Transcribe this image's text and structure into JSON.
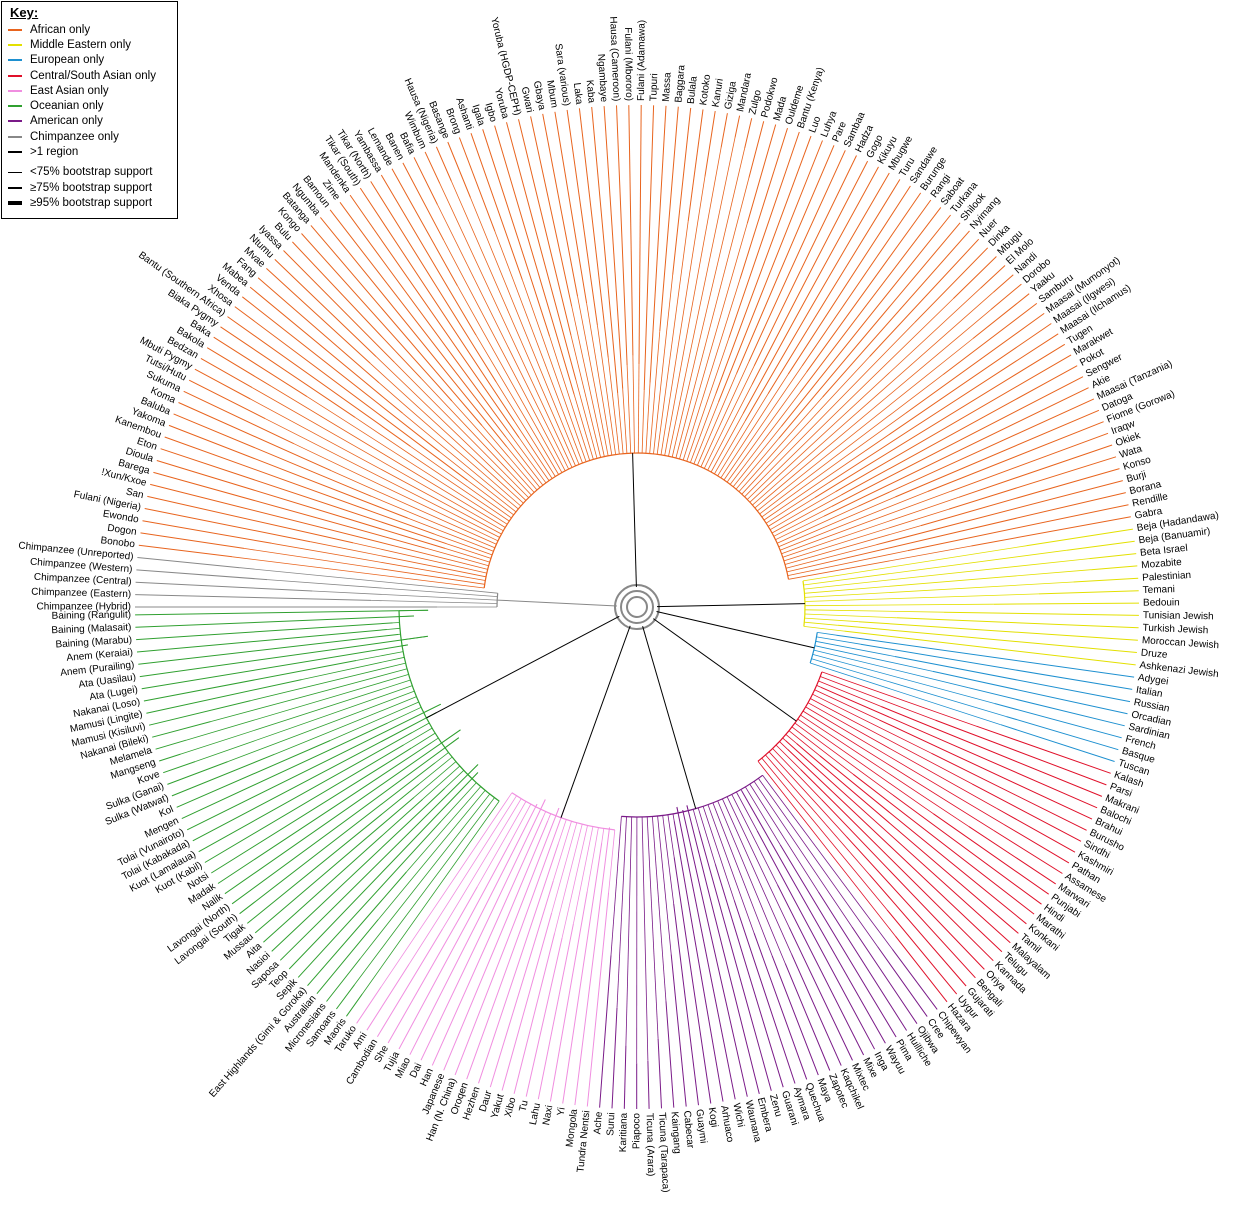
{
  "legend": {
    "title": "Key:",
    "regions": [
      {
        "label": "African only",
        "color": "#e8641e"
      },
      {
        "label": "Middle Eastern only",
        "color": "#e3e000"
      },
      {
        "label": "European only",
        "color": "#1e90d0"
      },
      {
        "label": "Central/South Asian only",
        "color": "#e0102a"
      },
      {
        "label": "East Asian only",
        "color": "#f08ee0"
      },
      {
        "label": "Oceanian only",
        "color": "#30a030"
      },
      {
        "label": "American only",
        "color": "#7a1a88"
      },
      {
        "label": "Chimpanzee only",
        "color": "#888888"
      },
      {
        "label": ">1 region",
        "color": "#000000"
      }
    ],
    "support": [
      {
        "label": "<75% bootstrap support",
        "weight": "thin"
      },
      {
        "label": "≥75% bootstrap support",
        "weight": "medium"
      },
      {
        "label": "≥95% bootstrap support",
        "weight": "thick"
      }
    ]
  },
  "groups": [
    {
      "region": "Chimpanzee",
      "color": "#888888",
      "labels": [
        "Chimpanzee (Hybrid)",
        "Chimpanzee (Eastern)",
        "Chimpanzee (Central)",
        "Chimpanzee (Western)",
        "Chimpanzee (Unreported)"
      ]
    },
    {
      "region": "African",
      "color": "#e8641e",
      "labels": [
        "Bonobo",
        "Dogon",
        "Ewondo",
        "Fulani (Nigeria)",
        "San",
        "!Xun/Kxoe",
        "Barega",
        "Dioula",
        "Eton",
        "Kanembou",
        "Yakoma",
        "Baluba",
        "Koma",
        "Sukuma",
        "Tutsi/Hutu",
        "Mbuti Pygmy",
        "Bedzan",
        "Bakola",
        "Baka",
        "Biaka Pygmy",
        "Bantu (Southern Africa)",
        "Xhosa",
        "Venda",
        "Mabea",
        "Fang",
        "Mvae",
        "Ntumu",
        "Iyassa",
        "Bulu",
        "Kongo",
        "Batanga",
        "Ngumba",
        "Bamoun",
        "Zime",
        "Mandenka",
        "Tikar (South)",
        "Tikar (North)",
        "Yambassa",
        "Lemande",
        "Banen",
        "Bafia",
        "Wimbum",
        "Hausa (Nigeria)",
        "Basange",
        "Brong",
        "Ashanti",
        "Igala",
        "Igbo",
        "Yoruba",
        "Yoruba (HGDP-CEPH)",
        "Gwari",
        "Gbaya",
        "Mbum",
        "Sara (various)",
        "Laka",
        "Kaba",
        "Ngambaye",
        "Hausa (Cameroon)",
        "Fulani (Mbororo)",
        "Fulani (Adamawa)",
        "Tupuri",
        "Massa",
        "Baggara",
        "Bulala",
        "Kotoko",
        "Kanuri",
        "Giziga",
        "Mandara",
        "Zulgo",
        "Podokwo",
        "Mada",
        "Ouldeme",
        "Bantu (Kenya)",
        "Luo",
        "Luhya",
        "Pare",
        "Sambaa",
        "Hadza",
        "Gogo",
        "Kikuyu",
        "Mbugwe",
        "Turu",
        "Sandawe",
        "Burunge",
        "Rangi",
        "Saboat",
        "Turkana",
        "Shilook",
        "Nyimang",
        "Nuer",
        "Dinka",
        "Mbugu",
        "El Molo",
        "Nandi",
        "Dorobo",
        "Yaaku",
        "Samburu",
        "Maasai (Mumonyot)",
        "Maasai (Ilgwesi)",
        "Maasai (Ilchamus)",
        "Tugen",
        "Marakwet",
        "Pokot",
        "Sengwer",
        "Akie",
        "Maasai (Tanzania)",
        "Datoga",
        "Fiome (Gorowa)",
        "Iraqw",
        "Okiek",
        "Wata",
        "Konso",
        "Burji",
        "Borana",
        "Rendille",
        "Gabra"
      ]
    },
    {
      "region": "Middle Eastern",
      "color": "#e3e000",
      "labels": [
        "Beja (Hadandawa)",
        "Beja (Banuamir)",
        "Beta Israel",
        "Mozabite",
        "Palestinian",
        "Temani",
        "Bedouin",
        "Tunisian Jewish",
        "Turkish Jewish",
        "Moroccan Jewish",
        "Druze",
        "Ashkenazi Jewish"
      ]
    },
    {
      "region": "European",
      "color": "#1e90d0",
      "labels": [
        "Adygei",
        "Italian",
        "Russian",
        "Orcadian",
        "Sardinian",
        "French",
        "Basque",
        "Tuscan"
      ]
    },
    {
      "region": "Central/South Asian",
      "color": "#e0102a",
      "labels": [
        "Kalash",
        "Parsi",
        "Makrani",
        "Balochi",
        "Brahui",
        "Burusho",
        "Sindhi",
        "Kashmiri",
        "Pathan",
        "Assamese",
        "Marwari",
        "Punjabi",
        "Hindi",
        "Marathi",
        "Konkani",
        "Tamil",
        "Malayalam",
        "Telugu",
        "Kannada",
        "Oriya",
        "Bengali",
        "Gujarati",
        "Uygur",
        "Hazara"
      ]
    },
    {
      "region": "American",
      "color": "#7a1a88",
      "labels": [
        "Chipewyan",
        "Cree",
        "Ojibwa",
        "Huilliche",
        "Pima",
        "Wayuu",
        "Inga",
        "Mixe",
        "Mixtec",
        "Kaqchikel",
        "Zapotec",
        "Maya",
        "Quechua",
        "Aymara",
        "Guarani",
        "Zenu",
        "Embera",
        "Waunana",
        "Wichi",
        "Arhuaco",
        "Kogi",
        "Guaymi",
        "Cabecar",
        "Kaingang",
        "Ticuna (Tarapaca)",
        "Ticuna (Arara)",
        "Piapoco",
        "Karitiana",
        "Surui",
        "Ache"
      ]
    },
    {
      "region": "East Asian",
      "color": "#f08ee0",
      "labels": [
        "Tundra Nentsi",
        "Mongola",
        "Yi",
        "Naxi",
        "Lahu",
        "Tu",
        "Xibo",
        "Yakut",
        "Daur",
        "Hezhen",
        "Oroqen",
        "Han (N. China)",
        "Japanese",
        "Han",
        "Dai",
        "Miao",
        "Tujia",
        "She",
        "Cambodian",
        "Ami",
        "Taruko"
      ]
    },
    {
      "region": "Oceanian",
      "color": "#30a030",
      "labels": [
        "Maoris",
        "Samoans",
        "Micronesians",
        "Australian",
        "East Highlands (Gimi & Goroka)",
        "Sepik",
        "Teop",
        "Saposa",
        "Nasioi",
        "Aita",
        "Mussau",
        "Tigak",
        "Lavongai (South)",
        "Lavongai (North)",
        "Nalik",
        "Madak",
        "Notsi",
        "Kuot (Kabil)",
        "Kuot (Lamalaua)",
        "Tolai (Kabakada)",
        "Tolai (Vunairoto)",
        "Mengen",
        "Kol",
        "Sulka (Watwat)",
        "Sulka (Ganai)",
        "Kove",
        "Mangseng",
        "Melamela",
        "Nakanai (Bileki)",
        "Mamusi (Kisiluvi)",
        "Mamusi (Lingite)",
        "Nakanai (Loso)",
        "Ata (Lugei)",
        "Ata (Uasilau)",
        "Anem (Purailing)",
        "Anem (Keraiai)",
        "Baining (Marabu)",
        "Baining (Malasait)",
        "Baining (Rangulit)"
      ]
    }
  ]
}
